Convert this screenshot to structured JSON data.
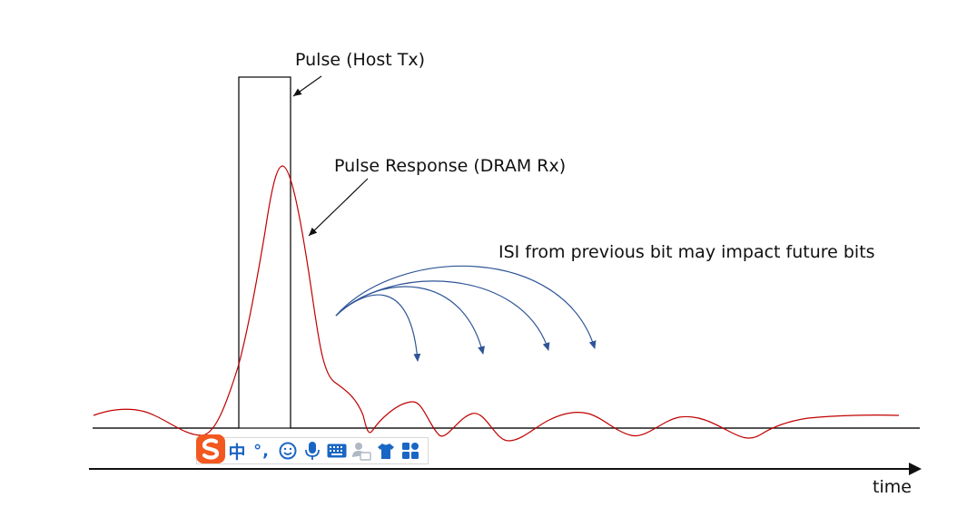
{
  "labels": {
    "pulse_host": "Pulse (Host Tx)",
    "pulse_response": "Pulse Response (DRAM Rx)",
    "isi_note": "ISI from previous bit may impact future bits",
    "time_axis": "time"
  },
  "toolbar": {
    "chinese_char": "中",
    "punct": "°,",
    "icons": [
      "sogou-logo-icon",
      "chinese-mode-icon",
      "punctuation-icon",
      "emoji-icon",
      "microphone-icon",
      "keyboard-icon",
      "user-card-icon",
      "skin-shirt-icon",
      "apps-grid-icon"
    ]
  },
  "colors": {
    "pulse": "#111111",
    "response": "#c00000",
    "isi_arrows": "#2f5597",
    "toolbar_blue": "#1a66c4",
    "logo_orange": "#f2581f"
  }
}
